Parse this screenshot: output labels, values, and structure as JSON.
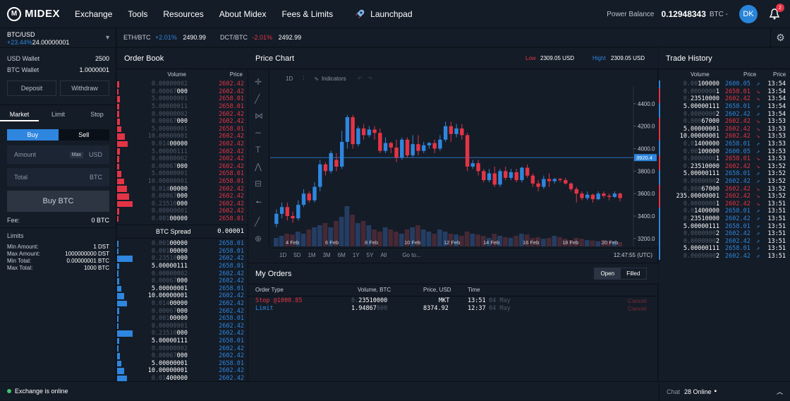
{
  "brand": {
    "name": "MIDEX",
    "logo_letter": "M"
  },
  "nav": [
    "Exchange",
    "Tools",
    "Resources",
    "About Midex",
    "Fees & Limits"
  ],
  "launchpad": "Launchpad",
  "header": {
    "power_label": "Power Balance",
    "balance": "0.12948343",
    "currency": "BTC -",
    "avatar": "DK",
    "notifications": "2"
  },
  "pair": {
    "name": "BTC/USD",
    "change": "+23.44%",
    "price": "24.00000001"
  },
  "tickers": [
    {
      "pair": "ETH/BTC",
      "change": "+2.01%",
      "price": "2490.99",
      "dir": "up"
    },
    {
      "pair": "DCT/BTC",
      "change": "-2.01%",
      "price": "2492.99",
      "dir": "down"
    }
  ],
  "wallets": [
    {
      "label": "USD Wallet",
      "value": "2500"
    },
    {
      "label": "BTC Wallet",
      "value": "1.0000001"
    }
  ],
  "wallet_buttons": {
    "deposit": "Deposit",
    "withdraw": "Withdraw"
  },
  "order_tabs": [
    "Market",
    "Limit",
    "Stop"
  ],
  "side": {
    "buy": "Buy",
    "sell": "Sell"
  },
  "amount": {
    "label": "Amount",
    "max": "Max",
    "cur": "USD"
  },
  "total": {
    "label": "Total",
    "cur": "BTC"
  },
  "buy_btn": "Buy BTC",
  "fee": {
    "label": "Fee:",
    "value": "0 BTC"
  },
  "limits": {
    "title": "Limits",
    "items": [
      {
        "label": "Min Amount:",
        "value": "1 DST"
      },
      {
        "label": "Max Amount:",
        "value": "1000000000 DST"
      },
      {
        "label": "Min Total:",
        "value": "0.00000001 BTC"
      },
      {
        "label": "Max Total:",
        "value": "1000 BTC"
      }
    ]
  },
  "order_book": {
    "title": "Order Book",
    "col_volume": "Volume",
    "col_price": "Price",
    "asks": [
      {
        "vol_dim": "0.00800002",
        "vol": "",
        "price": "2602.42",
        "depth": 3
      },
      {
        "vol_dim": "0.00067",
        "vol": "000",
        "price": "2602.42",
        "depth": 2
      },
      {
        "vol_dim": "5.00000001",
        "vol": "",
        "price": "2658.01",
        "depth": 4
      },
      {
        "vol_dim": "5.00000011",
        "vol": "",
        "price": "2658.01",
        "depth": 3
      },
      {
        "vol_dim": "0.00000002",
        "vol": "",
        "price": "2602.42",
        "depth": 3
      },
      {
        "vol_dim": "0.00067",
        "vol": "000",
        "price": "2602.42",
        "depth": 4
      },
      {
        "vol_dim": "5.00000001",
        "vol": "",
        "price": "2658.01",
        "depth": 6
      },
      {
        "vol_dim": "10.00000001",
        "vol": "",
        "price": "2602.42",
        "depth": 11
      },
      {
        "vol_dim": "0.014",
        "vol": "00000",
        "price": "2602.42",
        "depth": 15
      },
      {
        "vol_dim": "5.00000111",
        "vol": "",
        "price": "2602.42",
        "depth": 4
      },
      {
        "vol_dim": "0.00000002",
        "vol": "",
        "price": "2602.42",
        "depth": 3
      },
      {
        "vol_dim": "0.00067",
        "vol": "000",
        "price": "2602.42",
        "depth": 3
      },
      {
        "vol_dim": "5.00000001",
        "vol": "",
        "price": "2658.01",
        "depth": 6
      },
      {
        "vol_dim": "10.00000001",
        "vol": "",
        "price": "2658.01",
        "depth": 10
      },
      {
        "vol_dim": "0.014",
        "vol": "00000",
        "price": "2602.42",
        "depth": 14
      },
      {
        "vol_dim": "0.00067",
        "vol": "000",
        "price": "2602.42",
        "depth": 17
      },
      {
        "vol_dim": "0.23510",
        "vol": "000",
        "price": "2602.42",
        "depth": 22
      },
      {
        "vol_dim": "0.00000001",
        "vol": "",
        "price": "2602.42",
        "depth": 3
      },
      {
        "vol_dim": "0.001",
        "vol": "00000",
        "price": "2658.01",
        "depth": 2
      }
    ],
    "spread_label": "BTC Spread",
    "spread_value": "0.00001",
    "bids": [
      {
        "vol_dim": "0.001",
        "vol": "00000",
        "price": "2658.01",
        "depth": 2
      },
      {
        "vol_dim": "0.001",
        "vol": "00000",
        "price": "2658.01",
        "depth": 2
      },
      {
        "vol_dim": "0.23510",
        "vol": "000",
        "price": "2602.42",
        "depth": 22
      },
      {
        "vol_dim": "",
        "vol": "5.00000111",
        "price": "2658.01",
        "depth": 3
      },
      {
        "vol_dim": "0.00000002",
        "vol": "",
        "price": "2602.42",
        "depth": 2
      },
      {
        "vol_dim": "0.00067",
        "vol": "000",
        "price": "2602.42",
        "depth": 3
      },
      {
        "vol_dim": "",
        "vol": "5.00000001",
        "price": "2658.01",
        "depth": 6
      },
      {
        "vol_dim": "",
        "vol": "10.00000001",
        "price": "2602.42",
        "depth": 10
      },
      {
        "vol_dim": "0.014",
        "vol": "00000",
        "price": "2602.42",
        "depth": 14
      },
      {
        "vol_dim": "0.00067",
        "vol": "000",
        "price": "2602.42",
        "depth": 3
      },
      {
        "vol_dim": "0.001",
        "vol": "00000",
        "price": "2658.01",
        "depth": 2
      },
      {
        "vol_dim": "0.00000001",
        "vol": "",
        "price": "2602.42",
        "depth": 2
      },
      {
        "vol_dim": "0.23510",
        "vol": "000",
        "price": "2602.42",
        "depth": 22
      },
      {
        "vol_dim": "",
        "vol": "5.00000111",
        "price": "2658.01",
        "depth": 3
      },
      {
        "vol_dim": "0.00000002",
        "vol": "",
        "price": "2602.42",
        "depth": 2
      },
      {
        "vol_dim": "0.00067",
        "vol": "000",
        "price": "2602.42",
        "depth": 4
      },
      {
        "vol_dim": "",
        "vol": "5.00000001",
        "price": "2658.01",
        "depth": 6
      },
      {
        "vol_dim": "",
        "vol": "10.00000001",
        "price": "2602.42",
        "depth": 10
      },
      {
        "vol_dim": "0.01",
        "vol": "400000",
        "price": "2602.42",
        "depth": 14
      }
    ]
  },
  "price_chart": {
    "title": "Price Chart",
    "low_label": "Low",
    "low": "2309.05 USD",
    "high_label": "Hight",
    "high": "2309.05 USD",
    "interval": "1D",
    "indicators": "Indicators",
    "current_price": "3920.4",
    "ranges": [
      "1D",
      "5D",
      "1M",
      "3M",
      "6M",
      "1Y",
      "5Y",
      "All"
    ],
    "goto": "Go to...",
    "time": "12:47:55 (UTC)"
  },
  "chart_data": {
    "type": "candlestick",
    "x_ticks": [
      "4 Feb",
      "6 Feb",
      "8 Feb",
      "10 Feb",
      "12 Feb",
      "14 Feb",
      "16 Feb",
      "18 Feb",
      "20 Feb"
    ],
    "y_ticks": [
      "4400.0",
      "4200.0",
      "4000.0",
      "3800.0",
      "3600.0",
      "3400.0",
      "3200.0"
    ],
    "ylim": [
      3130,
      4550
    ],
    "current_price": 3920.4,
    "candles": [
      [
        3330,
        3420,
        3300,
        3460
      ],
      [
        3420,
        3480,
        3380,
        3520
      ],
      [
        3480,
        3400,
        3360,
        3520
      ],
      [
        3400,
        3380,
        3340,
        3440
      ],
      [
        3380,
        3500,
        3360,
        3540
      ],
      [
        3500,
        3600,
        3480,
        3640
      ],
      [
        3600,
        3540,
        3520,
        3620
      ],
      [
        3540,
        3660,
        3520,
        3700
      ],
      [
        3660,
        3860,
        3620,
        3900
      ],
      [
        3860,
        3800,
        3760,
        3880
      ],
      [
        3800,
        3960,
        3780,
        3980
      ],
      [
        3900,
        3840,
        3800,
        3960
      ],
      [
        3840,
        4060,
        3820,
        4160
      ],
      [
        4060,
        4280,
        4000,
        4300
      ],
      [
        4280,
        4040,
        4000,
        4300
      ],
      [
        4040,
        4180,
        4020,
        4200
      ],
      [
        4180,
        4120,
        4080,
        4220
      ],
      [
        4120,
        4170,
        4100,
        4200
      ],
      [
        4170,
        4140,
        4080,
        4200
      ],
      [
        4140,
        3980,
        3960,
        4180
      ],
      [
        3980,
        4050,
        3960,
        4100
      ],
      [
        4050,
        4010,
        3960,
        4060
      ],
      [
        4010,
        3920,
        3880,
        4080
      ],
      [
        3920,
        4080,
        3900,
        4100
      ],
      [
        4080,
        3940,
        3920,
        4100
      ],
      [
        3940,
        4040,
        3920,
        4120
      ],
      [
        4040,
        3980,
        3940,
        4120
      ],
      [
        3980,
        4030,
        3960,
        4060
      ],
      [
        4030,
        4050,
        4000,
        4060
      ],
      [
        4050,
        4000,
        3960,
        4080
      ],
      [
        4000,
        4080,
        3980,
        4120
      ],
      [
        4080,
        4200,
        4060,
        4240
      ],
      [
        4200,
        4130,
        4060,
        4240
      ],
      [
        4130,
        4180,
        4100,
        4220
      ],
      [
        4180,
        4120,
        4080,
        4220
      ],
      [
        4120,
        3840,
        3800,
        4140
      ],
      [
        3840,
        3870,
        3820,
        3900
      ],
      [
        3870,
        3800,
        3760,
        3900
      ],
      [
        3800,
        3720,
        3700,
        3820
      ],
      [
        3720,
        3780,
        3700,
        3820
      ],
      [
        3780,
        3680,
        3660,
        3840
      ],
      [
        3680,
        3800,
        3660,
        3820
      ],
      [
        3800,
        3740,
        3720,
        3840
      ],
      [
        3740,
        3790,
        3720,
        3820
      ],
      [
        3790,
        3720,
        3700,
        3820
      ],
      [
        3720,
        3830,
        3700,
        3840
      ],
      [
        3830,
        3760,
        3740,
        3860
      ],
      [
        3760,
        3690,
        3660,
        3780
      ],
      [
        3690,
        3660,
        3620,
        3720
      ],
      [
        3660,
        3730,
        3640,
        3760
      ],
      [
        3730,
        3710,
        3660,
        3780
      ],
      [
        3710,
        3730,
        3690,
        3740
      ],
      [
        3730,
        3720,
        3700,
        3740
      ],
      [
        3720,
        3690,
        3680,
        3740
      ],
      [
        3690,
        3640,
        3620,
        3700
      ],
      [
        3640,
        3600,
        3520,
        3660
      ],
      [
        3600,
        3560,
        3540,
        3620
      ],
      [
        3560,
        3590,
        3540,
        3620
      ],
      [
        3590,
        3550,
        3520,
        3600
      ],
      [
        3550,
        3600,
        3540,
        3620
      ],
      [
        3600,
        3580,
        3560,
        3620
      ],
      [
        3580,
        3570,
        3540,
        3600
      ],
      [
        3570,
        3600,
        3560,
        3620
      ],
      [
        3600,
        3560,
        3530,
        3610
      ]
    ],
    "volumes": [
      0.2,
      0.25,
      0.3,
      0.28,
      0.35,
      0.3,
      0.4,
      0.45,
      0.5,
      0.55,
      0.45,
      0.6,
      0.7,
      0.95,
      0.75,
      0.55,
      0.6,
      0.5,
      0.4,
      0.35,
      0.45,
      0.4,
      0.35,
      0.3,
      0.4,
      0.45,
      0.5,
      0.4,
      0.35,
      0.3,
      0.4,
      0.35,
      0.3,
      0.28,
      0.25,
      0.35,
      0.3,
      0.28,
      0.25,
      0.2,
      0.3,
      0.25,
      0.22,
      0.2,
      0.25,
      0.3,
      0.28,
      0.2,
      0.22,
      0.18,
      0.2,
      0.25,
      0.22,
      0.18,
      0.15,
      0.2,
      0.18,
      0.15,
      0.14,
      0.12,
      0.15,
      0.13,
      0.12,
      0.1
    ]
  },
  "my_orders": {
    "title": "My Orders",
    "tab_open": "Open",
    "tab_filled": "Filled",
    "headers": [
      "Order Type",
      "Volume, BTC",
      "Price, USD",
      "Time"
    ],
    "rows": [
      {
        "type": "Stop @1000.85",
        "vol_dim": "0.",
        "vol": "23510000",
        "price": "MKT",
        "time": "13:51",
        "date": "04 May",
        "action": "Cancel",
        "color": "#e33446"
      },
      {
        "type": "Limit",
        "vol_dim": "",
        "vol": "1.94867",
        "vol_tail": "000",
        "price": "8374.92",
        "time": "12:37",
        "date": "04 May",
        "action": "Cancel",
        "color": "#2e86de"
      }
    ]
  },
  "trade_history": {
    "title": "Trade History",
    "headers": [
      "Volume",
      "Price",
      "Price"
    ],
    "rows": [
      {
        "vol_dim": "0.00",
        "vol": "100000",
        "price": "2600.05",
        "dir": "up",
        "time": "13:54"
      },
      {
        "vol_dim": "0.0000000",
        "vol": "1",
        "price": "2658.01",
        "dir": "down",
        "time": "13:54"
      },
      {
        "vol_dim": "0.",
        "vol": "23510000",
        "price": "2602.42",
        "dir": "down",
        "time": "13:54"
      },
      {
        "vol_dim": "",
        "vol": "5.00000111",
        "price": "2658.01",
        "dir": "up",
        "time": "13:54"
      },
      {
        "vol_dim": "0.0000000",
        "vol": "2",
        "price": "2602.42",
        "dir": "up",
        "time": "13:54"
      },
      {
        "vol_dim": "0.000",
        "vol": "67000",
        "price": "2602.42",
        "dir": "down",
        "time": "13:53"
      },
      {
        "vol_dim": "",
        "vol": "5.00000001",
        "price": "2602.42",
        "dir": "down",
        "time": "13:53"
      },
      {
        "vol_dim": "",
        "vol": "10.00000001",
        "price": "2602.42",
        "dir": "down",
        "time": "13:53"
      },
      {
        "vol_dim": "0.0",
        "vol": "1400000",
        "price": "2658.01",
        "dir": "up",
        "time": "13:53"
      },
      {
        "vol_dim": "0.00",
        "vol": "100000",
        "price": "2600.05",
        "dir": "up",
        "time": "13:53"
      },
      {
        "vol_dim": "0.0000000",
        "vol": "1",
        "price": "2658.01",
        "dir": "down",
        "time": "13:53"
      },
      {
        "vol_dim": "0.",
        "vol": "23510000",
        "price": "2602.42",
        "dir": "down",
        "time": "13:52"
      },
      {
        "vol_dim": "",
        "vol": "5.00000111",
        "price": "2658.01",
        "dir": "up",
        "time": "13:52"
      },
      {
        "vol_dim": "0.0000000",
        "vol": "2",
        "price": "2602.42",
        "dir": "up",
        "time": "13:52"
      },
      {
        "vol_dim": "0.000",
        "vol": "67000",
        "price": "2602.42",
        "dir": "down",
        "time": "13:52"
      },
      {
        "vol_dim": "",
        "vol": "235.00000001",
        "price": "2602.42",
        "dir": "down",
        "time": "13:52"
      },
      {
        "vol_dim": "0.0000000",
        "vol": "1",
        "price": "2602.42",
        "dir": "down",
        "time": "13:51"
      },
      {
        "vol_dim": "0.0",
        "vol": "1400000",
        "price": "2658.01",
        "dir": "up",
        "time": "13:51"
      },
      {
        "vol_dim": "0.",
        "vol": "23510000",
        "price": "2602.42",
        "dir": "up",
        "time": "13:51"
      },
      {
        "vol_dim": "",
        "vol": "5.00000111",
        "price": "2658.01",
        "dir": "up",
        "time": "13:51"
      },
      {
        "vol_dim": "0.0000000",
        "vol": "2",
        "price": "2602.42",
        "dir": "up",
        "time": "13:51"
      },
      {
        "vol_dim": "0.0000000",
        "vol": "2",
        "price": "2602.42",
        "dir": "up",
        "time": "13:51"
      },
      {
        "vol_dim": "",
        "vol": "5.00000111",
        "price": "2658.01",
        "dir": "up",
        "time": "13:51"
      },
      {
        "vol_dim": "0.0000000",
        "vol": "2",
        "price": "2602.42",
        "dir": "up",
        "time": "13:51"
      }
    ]
  },
  "status": {
    "text": "Exchange is online",
    "color": "#3ec46d"
  },
  "chat": {
    "label": "Chat",
    "online": "28 Online"
  },
  "colors": {
    "up": "#2e86de",
    "down": "#e33446",
    "bg": "#0f1721",
    "panel": "#141c27"
  }
}
